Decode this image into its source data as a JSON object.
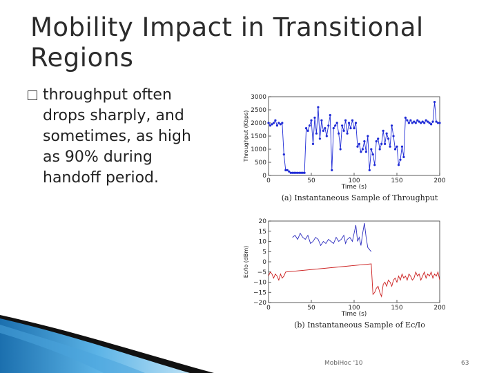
{
  "slide": {
    "title": "Mobility Impact in Transitional Regions",
    "bullet": "throughput often\ndrops sharply, and\nsometimes, as high\nas 90% during\nhandoff period.",
    "footer_center": "MobiHoc '10",
    "footer_page": "63"
  },
  "chart_data": [
    {
      "type": "line",
      "xlabel": "Time (s)",
      "ylabel": "Throughput (Kbps)",
      "caption": "(a) Instantaneous Sample of Throughput",
      "xlim": [
        0,
        200
      ],
      "ylim": [
        0,
        3000
      ],
      "xticks": [
        "0",
        "50",
        "100",
        "150",
        "200"
      ],
      "yticks": [
        "0",
        "500",
        "1000",
        "1500",
        "2000",
        "2500",
        "3000"
      ],
      "series": [
        {
          "color": "#1f2bd6",
          "x": [
            0,
            2,
            4,
            6,
            8,
            10,
            12,
            14,
            16,
            18,
            20,
            22,
            24,
            26,
            28,
            30,
            32,
            34,
            36,
            38,
            40,
            42,
            44,
            46,
            48,
            50,
            52,
            54,
            56,
            58,
            60,
            62,
            64,
            66,
            68,
            70,
            72,
            74,
            76,
            78,
            80,
            82,
            84,
            86,
            88,
            90,
            92,
            94,
            96,
            98,
            100,
            102,
            104,
            106,
            108,
            110,
            112,
            114,
            116,
            118,
            120,
            122,
            124,
            126,
            128,
            130,
            132,
            134,
            136,
            138,
            140,
            142,
            144,
            146,
            148,
            150,
            152,
            154,
            156,
            158,
            160,
            162,
            164,
            166,
            168,
            170,
            172,
            174,
            176,
            178,
            180,
            182,
            184,
            186,
            188,
            190,
            192,
            194,
            196,
            198,
            200
          ],
          "y": [
            2000,
            1900,
            1950,
            2000,
            2100,
            1900,
            2000,
            1950,
            2000,
            800,
            200,
            200,
            150,
            100,
            100,
            100,
            100,
            100,
            100,
            100,
            100,
            100,
            1800,
            1700,
            1900,
            2100,
            1200,
            2200,
            1600,
            2600,
            1400,
            2100,
            1700,
            1800,
            1500,
            1900,
            2300,
            200,
            1800,
            1900,
            2000,
            1600,
            1000,
            1900,
            1700,
            2100,
            1600,
            2000,
            1800,
            2100,
            1800,
            2000,
            1100,
            1200,
            900,
            1000,
            1300,
            900,
            1500,
            200,
            1000,
            800,
            400,
            1300,
            1400,
            1000,
            1200,
            1700,
            1200,
            1600,
            1400,
            1100,
            1900,
            1500,
            1000,
            1100,
            400,
            600,
            1100,
            700,
            2200,
            2100,
            2000,
            2100,
            2000,
            2050,
            2000,
            2100,
            2050,
            2000,
            2050,
            2000,
            2100,
            2050,
            2000,
            1950,
            2050,
            2800,
            2050,
            2000,
            2000
          ]
        }
      ]
    },
    {
      "type": "line",
      "xlabel": "Time (s)",
      "ylabel": "Ec/Io (dBm)",
      "caption": "(b) Instantaneous Sample of Ec/Io",
      "xlim": [
        0,
        200
      ],
      "ylim": [
        -20,
        20
      ],
      "xticks": [
        "0",
        "50",
        "100",
        "150",
        "200"
      ],
      "yticks": [
        "20",
        "15",
        "10",
        "5",
        "0",
        "−5",
        "−10",
        "−15",
        "−20"
      ],
      "series": [
        {
          "color": "#2b2bbf",
          "x": [
            28,
            31,
            34,
            37,
            40,
            43,
            46,
            49,
            52,
            55,
            58,
            61,
            64,
            67,
            70,
            73,
            76,
            79,
            82,
            85,
            88,
            90,
            92,
            95,
            98,
            100,
            102,
            104,
            106,
            108,
            110,
            112,
            114,
            116,
            118,
            120
          ],
          "y": [
            12,
            13,
            11,
            14,
            12,
            11,
            13,
            9,
            10,
            12,
            11,
            8,
            10,
            9,
            11,
            10,
            9,
            12,
            10,
            11,
            13,
            9,
            11,
            12,
            10,
            14,
            18,
            10,
            12,
            8,
            14,
            19,
            12,
            7,
            6,
            5
          ],
          "labels": []
        },
        {
          "color": "#cc1f1f",
          "x": [
            0,
            2,
            4,
            6,
            8,
            10,
            12,
            14,
            16,
            18,
            20,
            120,
            122,
            124,
            126,
            128,
            130,
            132,
            134,
            136,
            138,
            140,
            142,
            144,
            146,
            148,
            150,
            152,
            154,
            156,
            158,
            160,
            162,
            164,
            166,
            168,
            170,
            172,
            174,
            176,
            178,
            180,
            182,
            184,
            186,
            188,
            190,
            192,
            194,
            196,
            198,
            200
          ],
          "y": [
            -7,
            -5,
            -6,
            -8,
            -6,
            -7,
            -9,
            -6,
            -8,
            -7,
            -5,
            -1,
            -16,
            -15,
            -13,
            -12,
            -15,
            -17,
            -11,
            -10,
            -12,
            -9,
            -10,
            -12,
            -9,
            -8,
            -10,
            -7,
            -9,
            -6,
            -8,
            -7,
            -9,
            -6,
            -7,
            -9,
            -8,
            -5,
            -7,
            -6,
            -9,
            -7,
            -5,
            -8,
            -6,
            -7,
            -5,
            -8,
            -6,
            -7,
            -5,
            -9
          ]
        }
      ]
    }
  ]
}
